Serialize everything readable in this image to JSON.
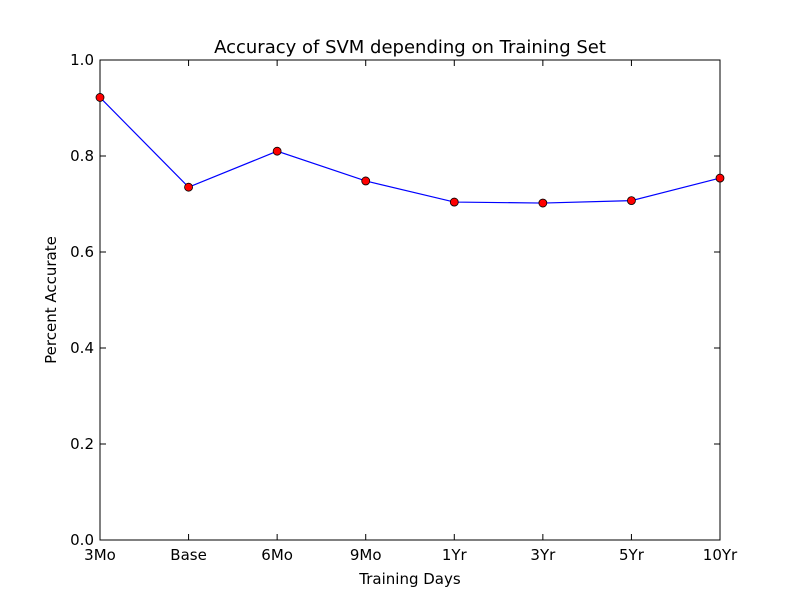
{
  "chart_data": {
    "type": "line",
    "title": "Accuracy of SVM depending on Training Set",
    "xlabel": "Training Days",
    "ylabel": "Percent Accurate",
    "categories": [
      "3Mo",
      "Base",
      "6Mo",
      "9Mo",
      "1Yr",
      "3Yr",
      "5Yr",
      "10Yr"
    ],
    "series": [
      {
        "values": [
          0.922,
          0.735,
          0.81,
          0.748,
          0.704,
          0.702,
          0.707,
          0.754
        ],
        "line_color": "#0000ff",
        "marker_color": "#ff0000"
      }
    ],
    "ylim": [
      0.0,
      1.0
    ],
    "yticks": [
      "0.0",
      "0.2",
      "0.4",
      "0.6",
      "0.8",
      "1.0"
    ],
    "grid": false,
    "legend": "none"
  }
}
